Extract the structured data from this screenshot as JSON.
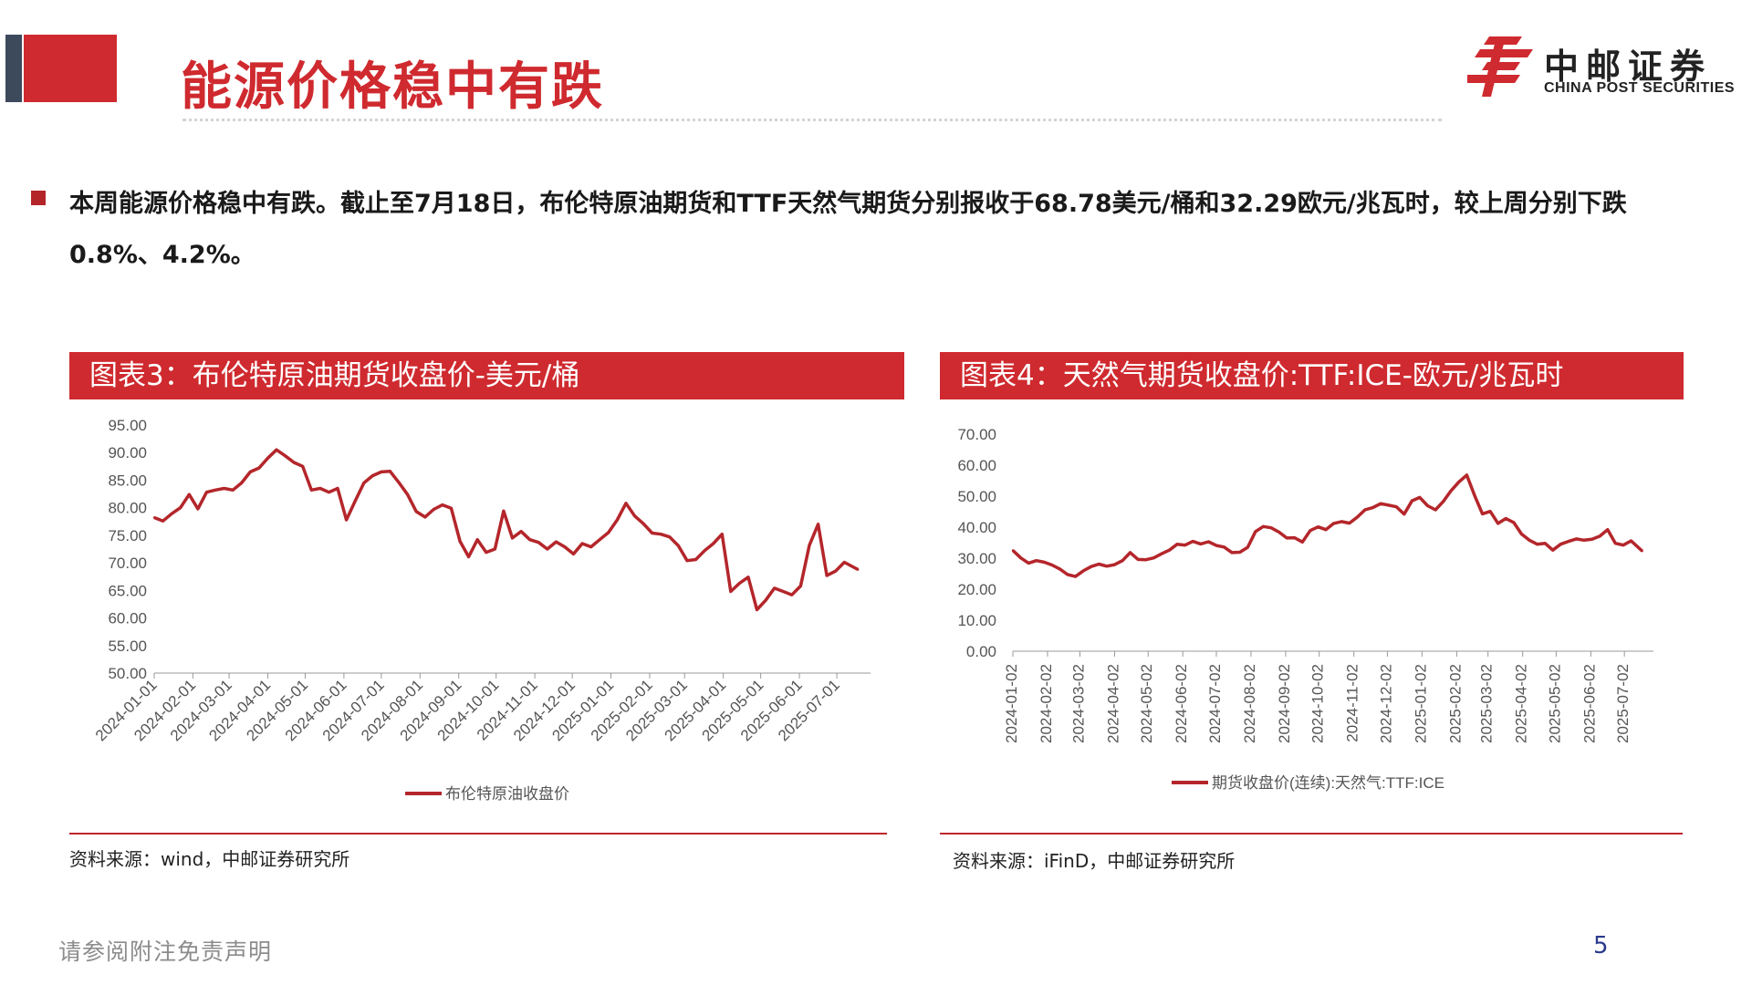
{
  "header": {
    "title": "能源价格稳中有跌",
    "logo_cn": "中邮证券",
    "logo_en": "CHINA POST SECURITIES"
  },
  "summary": "本周能源价格稳中有跌。截止至7月18日，布伦特原油期货和TTF天然气期货分别报收于68.78美元/桶和32.29欧元/兆瓦时，较上周分别下跌0.8%、4.2%。",
  "panels": [
    {
      "header": "图表3：布伦特原油期货收盘价-美元/桶",
      "source": "资料来源：wind，中邮证券研究所"
    },
    {
      "header": "图表4：天然气期货收盘价:TTF:ICE-欧元/兆瓦时",
      "source": "资料来源：iFinD，中邮证券研究所"
    }
  ],
  "footer": {
    "disclaimer": "请参阅附注免责声明",
    "page": "5"
  },
  "colors": {
    "brand_red": "#cf2a2f",
    "series_red": "#b4262b",
    "dark_block": "#3d4a5c",
    "page_number": "#2a3a8c"
  },
  "chart_data": [
    {
      "type": "line",
      "ylim": [
        50,
        95
      ],
      "yticks": [
        "95.00",
        "90.00",
        "85.00",
        "80.00",
        "75.00",
        "70.00",
        "65.00",
        "60.00",
        "55.00",
        "50.00"
      ],
      "xticks": [
        "2024-01-01",
        "2024-02-01",
        "2024-03-01",
        "2024-04-01",
        "2024-05-01",
        "2024-06-01",
        "2024-07-01",
        "2024-08-01",
        "2024-09-01",
        "2024-10-01",
        "2024-11-01",
        "2024-12-01",
        "2025-01-01",
        "2025-02-01",
        "2025-03-01",
        "2025-04-01",
        "2025-05-01",
        "2025-06-01",
        "2025-07-01"
      ],
      "legend_position": "bottom",
      "series": [
        {
          "name": "布伦特原油收盘价",
          "x": [
            "2024-01-01",
            "2024-01-08",
            "2024-01-15",
            "2024-01-22",
            "2024-01-29",
            "2024-02-05",
            "2024-02-12",
            "2024-02-19",
            "2024-02-26",
            "2024-03-04",
            "2024-03-11",
            "2024-03-18",
            "2024-03-25",
            "2024-04-01",
            "2024-04-08",
            "2024-04-15",
            "2024-04-22",
            "2024-04-29",
            "2024-05-06",
            "2024-05-13",
            "2024-05-20",
            "2024-05-27",
            "2024-06-03",
            "2024-06-10",
            "2024-06-17",
            "2024-06-24",
            "2024-07-01",
            "2024-07-08",
            "2024-07-15",
            "2024-07-22",
            "2024-07-29",
            "2024-08-05",
            "2024-08-12",
            "2024-08-19",
            "2024-08-26",
            "2024-09-02",
            "2024-09-09",
            "2024-09-16",
            "2024-09-23",
            "2024-09-30",
            "2024-10-07",
            "2024-10-14",
            "2024-10-21",
            "2024-10-28",
            "2024-11-04",
            "2024-11-11",
            "2024-11-18",
            "2024-11-25",
            "2024-12-02",
            "2024-12-09",
            "2024-12-16",
            "2024-12-23",
            "2024-12-30",
            "2025-01-06",
            "2025-01-13",
            "2025-01-20",
            "2025-01-27",
            "2025-02-03",
            "2025-02-10",
            "2025-02-17",
            "2025-02-24",
            "2025-03-03",
            "2025-03-10",
            "2025-03-17",
            "2025-03-24",
            "2025-03-31",
            "2025-04-07",
            "2025-04-14",
            "2025-04-21",
            "2025-04-28",
            "2025-05-05",
            "2025-05-12",
            "2025-05-19",
            "2025-05-26",
            "2025-06-02",
            "2025-06-09",
            "2025-06-16",
            "2025-06-23",
            "2025-06-30",
            "2025-07-07",
            "2025-07-18"
          ],
          "values": [
            78.2,
            77.6,
            78.9,
            80.0,
            82.4,
            79.8,
            82.8,
            83.2,
            83.5,
            83.2,
            84.5,
            86.5,
            87.2,
            89.0,
            90.5,
            89.4,
            88.2,
            87.5,
            83.2,
            83.5,
            82.8,
            83.5,
            77.8,
            81.2,
            84.5,
            85.8,
            86.5,
            86.6,
            84.6,
            82.4,
            79.3,
            78.3,
            79.7,
            80.5,
            79.9,
            73.9,
            71.1,
            74.2,
            71.9,
            72.5,
            79.4,
            74.5,
            75.7,
            74.2,
            73.7,
            72.5,
            73.8,
            72.9,
            71.6,
            73.5,
            72.9,
            74.2,
            75.5,
            77.8,
            80.8,
            78.5,
            77.1,
            75.4,
            75.2,
            74.7,
            73.1,
            70.4,
            70.6,
            72.2,
            73.5,
            75.2,
            64.8,
            66.3,
            67.4,
            61.5,
            63.2,
            65.4,
            64.8,
            64.2,
            65.8,
            73.2,
            77.0,
            67.7,
            68.5,
            70.1,
            68.78
          ]
        }
      ]
    },
    {
      "type": "line",
      "ylim": [
        0,
        70
      ],
      "yticks": [
        "70.00",
        "60.00",
        "50.00",
        "40.00",
        "30.00",
        "20.00",
        "10.00",
        "0.00"
      ],
      "xticks": [
        "2024-01-02",
        "2024-02-02",
        "2024-03-02",
        "2024-04-02",
        "2024-05-02",
        "2024-06-02",
        "2024-07-02",
        "2024-08-02",
        "2024-09-02",
        "2024-10-02",
        "2024-11-02",
        "2024-12-02",
        "2025-01-02",
        "2025-02-02",
        "2025-03-02",
        "2025-04-02",
        "2025-05-02",
        "2025-06-02",
        "2025-07-02"
      ],
      "legend_position": "bottom",
      "series": [
        {
          "name": "期货收盘价(连续):天然气:TTF:ICE",
          "x": [
            "2024-01-02",
            "2024-01-09",
            "2024-01-16",
            "2024-01-23",
            "2024-01-30",
            "2024-02-06",
            "2024-02-13",
            "2024-02-20",
            "2024-02-27",
            "2024-03-05",
            "2024-03-12",
            "2024-03-19",
            "2024-03-26",
            "2024-04-02",
            "2024-04-09",
            "2024-04-16",
            "2024-04-23",
            "2024-04-30",
            "2024-05-07",
            "2024-05-14",
            "2024-05-21",
            "2024-05-28",
            "2024-06-04",
            "2024-06-11",
            "2024-06-18",
            "2024-06-25",
            "2024-07-02",
            "2024-07-09",
            "2024-07-16",
            "2024-07-23",
            "2024-07-30",
            "2024-08-06",
            "2024-08-13",
            "2024-08-20",
            "2024-08-27",
            "2024-09-03",
            "2024-09-10",
            "2024-09-17",
            "2024-09-24",
            "2024-10-01",
            "2024-10-08",
            "2024-10-15",
            "2024-10-22",
            "2024-10-29",
            "2024-11-05",
            "2024-11-12",
            "2024-11-19",
            "2024-11-26",
            "2024-12-03",
            "2024-12-10",
            "2024-12-17",
            "2024-12-24",
            "2024-12-31",
            "2025-01-07",
            "2025-01-14",
            "2025-01-21",
            "2025-01-28",
            "2025-02-04",
            "2025-02-11",
            "2025-02-18",
            "2025-02-25",
            "2025-03-04",
            "2025-03-11",
            "2025-03-18",
            "2025-03-25",
            "2025-04-01",
            "2025-04-08",
            "2025-04-15",
            "2025-04-22",
            "2025-04-29",
            "2025-05-06",
            "2025-05-13",
            "2025-05-20",
            "2025-05-27",
            "2025-06-03",
            "2025-06-10",
            "2025-06-17",
            "2025-06-24",
            "2025-07-01",
            "2025-07-08",
            "2025-07-18"
          ],
          "values": [
            32.5,
            30.1,
            28.4,
            29.2,
            28.7,
            27.8,
            26.5,
            24.7,
            24.1,
            25.9,
            27.3,
            28.1,
            27.4,
            27.9,
            29.2,
            31.8,
            29.6,
            29.5,
            30.1,
            31.4,
            32.6,
            34.5,
            34.2,
            35.4,
            34.6,
            35.3,
            34.1,
            33.6,
            31.8,
            31.9,
            33.5,
            38.6,
            40.2,
            39.8,
            38.4,
            36.5,
            36.6,
            35.2,
            38.9,
            40.1,
            39.2,
            41.2,
            41.8,
            41.3,
            43.2,
            45.6,
            46.3,
            47.6,
            47.1,
            46.6,
            44.2,
            48.5,
            49.6,
            46.9,
            45.6,
            48.3,
            51.8,
            54.6,
            56.8,
            50.2,
            44.3,
            45.1,
            41.2,
            42.8,
            41.5,
            37.8,
            35.8,
            34.5,
            34.8,
            32.6,
            34.5,
            35.4,
            36.2,
            35.8,
            36.1,
            37.1,
            39.2,
            34.8,
            34.2,
            35.6,
            32.29
          ]
        }
      ]
    }
  ]
}
